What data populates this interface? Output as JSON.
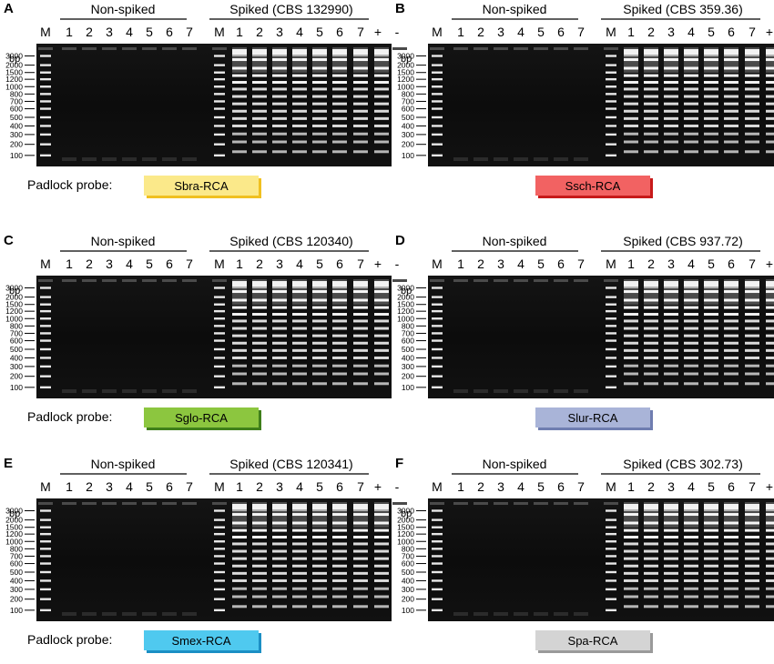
{
  "padlock_label": "Padlock probe:",
  "bp_unit": "bp",
  "marker_lane_label": "M",
  "positive_label": "+",
  "negative_label": "-",
  "nonspiked_label": "Non-spiked",
  "sample_lanes": [
    "1",
    "2",
    "3",
    "4",
    "5",
    "6",
    "7"
  ],
  "ladder_bp": [
    "3000",
    "2000",
    "1500",
    "1200",
    "1000",
    "800",
    "700",
    "600",
    "500",
    "400",
    "300",
    "200",
    "100"
  ],
  "panels": [
    {
      "letter": "A",
      "spiked_label": "Spiked (CBS 132990)",
      "probe": "Sbra-RCA",
      "probe_color": "#fbe98a",
      "probe_shadow": "#f0c020",
      "show_padlock_label": true
    },
    {
      "letter": "B",
      "spiked_label": "Spiked (CBS 359.36)",
      "probe": "Ssch-RCA",
      "probe_color": "#f26262",
      "probe_shadow": "#c71a1a",
      "show_padlock_label": false
    },
    {
      "letter": "C",
      "spiked_label": "Spiked (CBS 120340)",
      "probe": "Sglo-RCA",
      "probe_color": "#8cc63f",
      "probe_shadow": "#3f7f1a",
      "show_padlock_label": true
    },
    {
      "letter": "D",
      "spiked_label": "Spiked (CBS 937.72)",
      "probe": "Slur-RCA",
      "probe_color": "#a9b4d8",
      "probe_shadow": "#6f7db0",
      "show_padlock_label": false
    },
    {
      "letter": "E",
      "spiked_label": "Spiked (CBS 120341)",
      "probe": "Smex-RCA",
      "probe_color": "#4fc9ef",
      "probe_shadow": "#1b8fc4",
      "show_padlock_label": true
    },
    {
      "letter": "F",
      "spiked_label": "Spiked (CBS 302.73)",
      "probe": "Spa-RCA",
      "probe_color": "#d4d4d4",
      "probe_shadow": "#9a9a9a",
      "show_padlock_label": false
    }
  ]
}
